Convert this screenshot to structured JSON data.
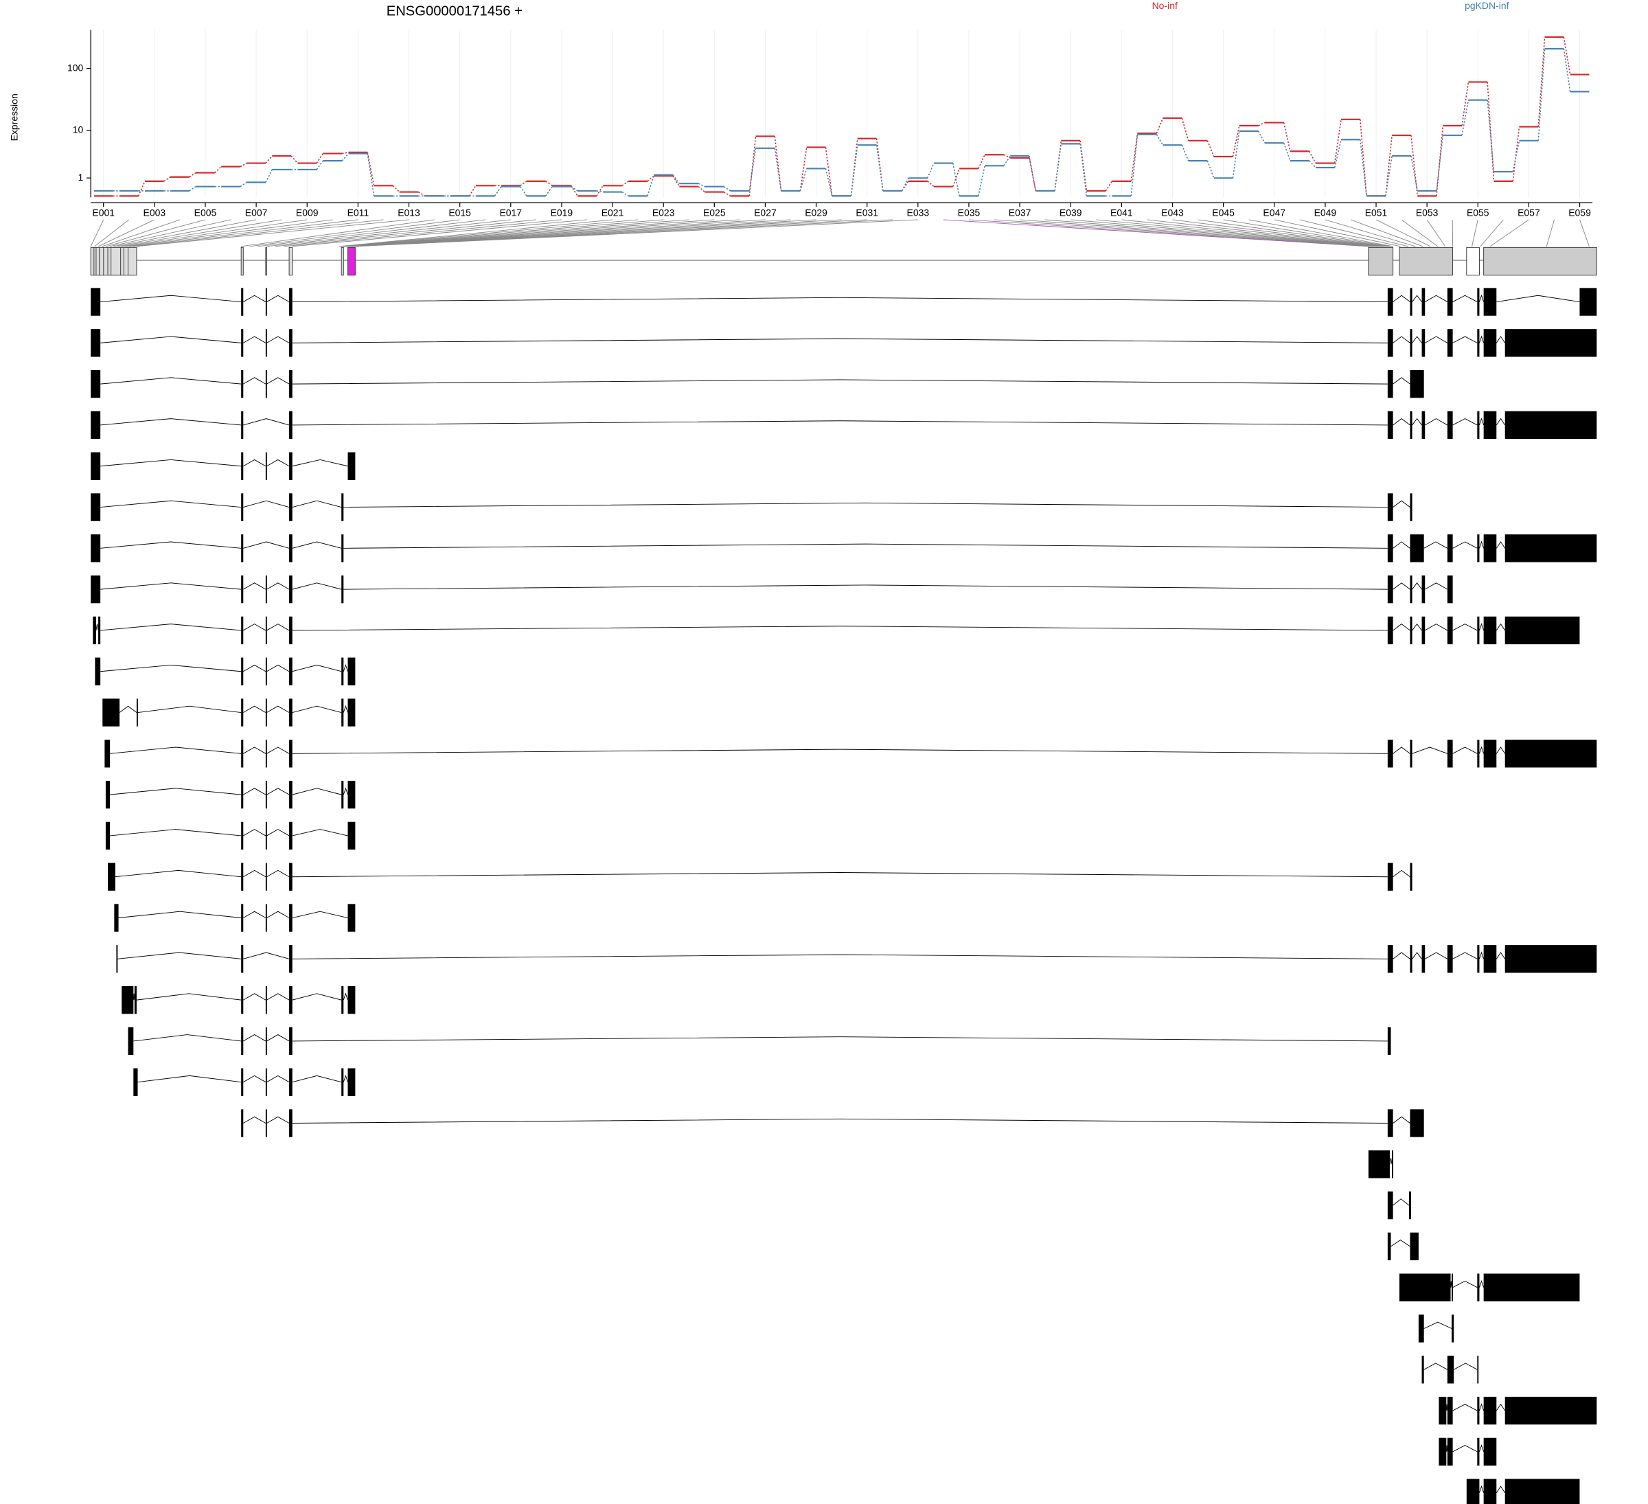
{
  "chart_data": [
    {
      "type": "line",
      "title": "ENSG00000171456 +",
      "y_label": "Expression",
      "categories": [
        "E001",
        null,
        "E003",
        null,
        "E005",
        null,
        "E007",
        null,
        "E009",
        null,
        "E011",
        null,
        "E013",
        null,
        "E015",
        null,
        "E017",
        null,
        "E019",
        null,
        "E021",
        null,
        "E023",
        null,
        "E025",
        null,
        "E027",
        null,
        "E029",
        null,
        "E031",
        null,
        "E033",
        null,
        "E035",
        null,
        "E037",
        null,
        "E039",
        null,
        "E041",
        null,
        "E043",
        null,
        "E045",
        null,
        "E047",
        null,
        "E049",
        null,
        "E051",
        null,
        "E053",
        null,
        "E055",
        null,
        "E057",
        null,
        "E059"
      ],
      "series": [
        {
          "name": "No-inf",
          "color": "#d62728",
          "values": [
            0.05,
            0.05,
            0.78,
            1.07,
            1.41,
            2.0,
            2.4,
            3.4,
            2.4,
            3.8,
            4.0,
            0.52,
            0.21,
            0.05,
            0.05,
            0.52,
            0.52,
            0.78,
            0.52,
            0.05,
            0.52,
            0.78,
            1.15,
            0.47,
            0.21,
            0.05,
            7.9,
            0.26,
            5.0,
            0.05,
            7.2,
            0.26,
            0.78,
            0.47,
            1.8,
            3.6,
            3.1,
            0.26,
            6.6,
            0.26,
            0.78,
            8.9,
            16,
            6.6,
            3.3,
            12,
            13.5,
            4.2,
            2.4,
            15.3,
            0.05,
            8.2,
            0.05,
            12,
            61,
            0.78,
            11.5,
            309,
            80
          ]
        },
        {
          "name": "pgKDN-inf",
          "color": "#4682b4",
          "values": [
            0.26,
            0.26,
            0.26,
            0.26,
            0.47,
            0.47,
            0.71,
            1.7,
            1.7,
            2.7,
            3.8,
            0.05,
            0.05,
            0.05,
            0.05,
            0.05,
            0.47,
            0.05,
            0.47,
            0.26,
            0.21,
            0.05,
            1.23,
            0.64,
            0.47,
            0.26,
            4.8,
            0.26,
            1.8,
            0.05,
            5.5,
            0.26,
            0.99,
            2.4,
            0.05,
            2.1,
            3.4,
            0.26,
            5.8,
            0.05,
            0.05,
            8.5,
            5.5,
            2.7,
            0.99,
            9.7,
            6.0,
            2.7,
            1.9,
            6.9,
            0.05,
            3.4,
            0.26,
            8.2,
            31.5,
            1.5,
            6.6,
            203,
            43
          ]
        }
      ],
      "ylim": [
        0,
        400
      ],
      "yticks": [
        1,
        10,
        100
      ],
      "y_transform": "log1p",
      "grid": true
    },
    {
      "type": "gene-model",
      "xlim": [
        32358330,
        32439323
      ],
      "xticks": [
        32358330,
        32367329,
        32376328,
        32385328,
        32394327,
        32403326,
        32412325,
        32421325,
        32430324,
        32439323
      ]
    }
  ]
}
